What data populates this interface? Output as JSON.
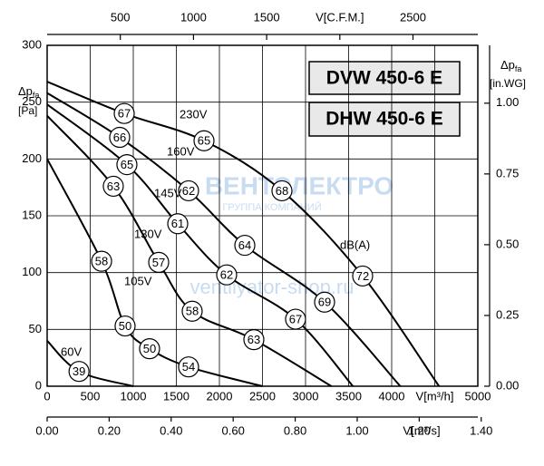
{
  "chart_data": {
    "type": "line",
    "models": [
      "DVW 450-6 E",
      "DHW 450-6 E"
    ],
    "y_label": {
      "symbol": "Δp",
      "subscript": "fa",
      "unit": "[Pa]"
    },
    "y2_label": {
      "symbol": "Δp",
      "subscript": "fa",
      "unit": "[in.WG]"
    },
    "x3_label": "V[m³/s]",
    "xlim": [
      0,
      5000
    ],
    "xticks": [
      0,
      500,
      1000,
      1500,
      2000,
      2500,
      3000,
      3500,
      4000,
      {
        "value": 4500,
        "label": "V[m³/h]"
      },
      5000
    ],
    "ylim": [
      0,
      300
    ],
    "yticks": [
      0,
      50,
      100,
      150,
      200,
      250,
      300
    ],
    "y2lim": [
      0,
      1.2044
    ],
    "y2ticks": [
      {
        "value": 0,
        "label": "0.00"
      },
      {
        "value": 0.25,
        "label": "0.25"
      },
      {
        "value": 0.5,
        "label": "0.50"
      },
      {
        "value": 0.75,
        "label": "0.75"
      },
      {
        "value": 1,
        "label": "1.00"
      }
    ],
    "x2lim": [
      0,
      2943
    ],
    "x2ticks": [
      500,
      1000,
      1500,
      {
        "value": 2000,
        "label": "V[C.F.M.]"
      },
      2500
    ],
    "x3lim": [
      0,
      1.389
    ],
    "x3ticks": [
      {
        "value": 0,
        "label": "0.00"
      },
      {
        "value": 0.2,
        "label": "0.20"
      },
      {
        "value": 0.4,
        "label": "0.40"
      },
      {
        "value": 0.6,
        "label": "0.60"
      },
      {
        "value": 0.8,
        "label": "0.80"
      },
      {
        "value": 1,
        "label": "1.00"
      },
      {
        "value": 1.2,
        "label": "1.20"
      },
      {
        "value": 1.4,
        "label": "1.40"
      }
    ],
    "grid": true,
    "noise_unit": "dB(A)",
    "color": "#000000",
    "series": [
      {
        "name": "230V",
        "x": [
          0,
          895,
          1821,
          2726,
          3663,
          4550
        ],
        "values": [
          268,
          240,
          216,
          172,
          97,
          0
        ],
        "db": [
          null,
          67,
          65,
          68,
          72,
          null
        ]
      },
      {
        "name": "160V",
        "x": [
          0,
          842,
          1642,
          2295,
          3221,
          4100
        ],
        "values": [
          258,
          219,
          172,
          124,
          74,
          0
        ],
        "db": [
          null,
          66,
          62,
          64,
          69,
          null
        ]
      },
      {
        "name": "145V",
        "x": [
          0,
          926,
          1516,
          2084,
          2884,
          3550
        ],
        "values": [
          248,
          195,
          143,
          98,
          59,
          0
        ],
        "db": [
          null,
          65,
          61,
          62,
          67,
          null
        ]
      },
      {
        "name": "130V",
        "x": [
          0,
          768,
          1295,
          1684,
          2400,
          3300
        ],
        "values": [
          238,
          176,
          109,
          66,
          41,
          0
        ],
        "db": [
          null,
          63,
          57,
          58,
          63,
          null
        ]
      },
      {
        "name": "105V",
        "x": [
          0,
          632,
          905,
          1189,
          1642,
          2500
        ],
        "values": [
          200,
          110,
          53,
          33,
          17,
          0
        ],
        "db": [
          null,
          58,
          50,
          50,
          54,
          null
        ]
      },
      {
        "name": "60V",
        "x": [
          0,
          370,
          1000
        ],
        "values": [
          40,
          13,
          0
        ],
        "db": [
          null,
          39,
          null
        ]
      }
    ],
    "watermark": [
      "ВЕНТЭЛЕКТРО",
      "ГРУППА КОМПАНИЙ",
      "ventilyator-shop.ru"
    ]
  }
}
